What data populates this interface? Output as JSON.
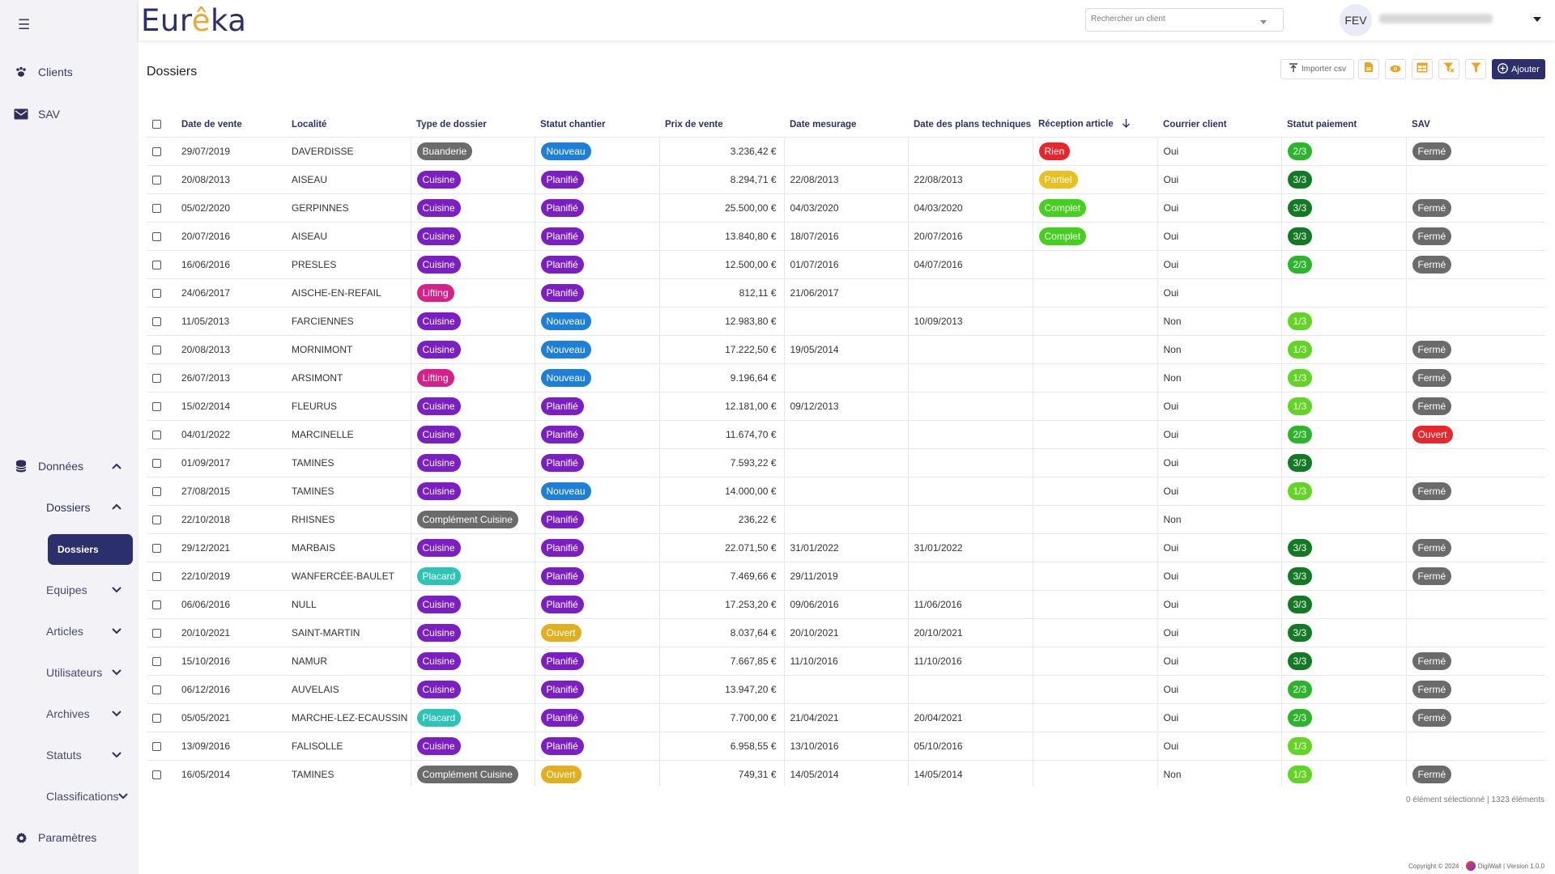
{
  "app": {
    "logo_text_start": "Eur",
    "logo_text_accent": "ê",
    "logo_text_end": "ka"
  },
  "header": {
    "search_placeholder": "Rechercher un client",
    "avatar_initials": "FEV"
  },
  "sidebar": {
    "clients": "Clients",
    "sav": "SAV",
    "donnees": "Données",
    "dossiers_group": "Dossiers",
    "dossiers_active": "Dossiers",
    "equipes": "Equipes",
    "articles": "Articles",
    "utilisateurs": "Utilisateurs",
    "archives": "Archives",
    "statuts": "Statuts",
    "classifications": "Classifications",
    "parametres": "Paramètres"
  },
  "toolbar": {
    "title": "Dossiers",
    "import_label": "Importer csv",
    "add_label": "Ajouter"
  },
  "table": {
    "columns": [
      "Date de vente",
      "Localité",
      "Type de dossier",
      "Statut chantier",
      "Prix de vente",
      "Date mesurage",
      "Date des plans techniques",
      "Réception article",
      "Courrier client",
      "Statut paiement",
      "SAV"
    ],
    "rows": [
      {
        "date": "29/07/2019",
        "loc": "DAVERDISSE",
        "type": "Buanderie",
        "statut": "Nouveau",
        "prix": "3.236,42 €",
        "mes": "",
        "plans": "",
        "recep": "Rien",
        "courrier": "Oui",
        "paie": "2/3",
        "sav": "Fermé"
      },
      {
        "date": "20/08/2013",
        "loc": "AISEAU",
        "type": "Cuisine",
        "statut": "Planifié",
        "prix": "8.294,71 €",
        "mes": "22/08/2013",
        "plans": "22/08/2013",
        "recep": "Partiel",
        "courrier": "Oui",
        "paie": "3/3",
        "sav": ""
      },
      {
        "date": "05/02/2020",
        "loc": "GERPINNES",
        "type": "Cuisine",
        "statut": "Planifié",
        "prix": "25.500,00 €",
        "mes": "04/03/2020",
        "plans": "04/03/2020",
        "recep": "Complet",
        "courrier": "Oui",
        "paie": "3/3",
        "sav": "Fermé"
      },
      {
        "date": "20/07/2016",
        "loc": "AISEAU",
        "type": "Cuisine",
        "statut": "Planifié",
        "prix": "13.840,80 €",
        "mes": "18/07/2016",
        "plans": "20/07/2016",
        "recep": "Complet",
        "courrier": "Oui",
        "paie": "3/3",
        "sav": "Fermé"
      },
      {
        "date": "16/06/2016",
        "loc": "PRESLES",
        "type": "Cuisine",
        "statut": "Planifié",
        "prix": "12.500,00 €",
        "mes": "01/07/2016",
        "plans": "04/07/2016",
        "recep": "",
        "courrier": "Oui",
        "paie": "2/3",
        "sav": "Fermé"
      },
      {
        "date": "24/06/2017",
        "loc": "AISCHE-EN-REFAIL",
        "type": "Lifting",
        "statut": "Planifié",
        "prix": "812,11 €",
        "mes": "21/06/2017",
        "plans": "",
        "recep": "",
        "courrier": "Oui",
        "paie": "",
        "sav": ""
      },
      {
        "date": "11/05/2013",
        "loc": "FARCIENNES",
        "type": "Cuisine",
        "statut": "Nouveau",
        "prix": "12.983,80 €",
        "mes": "",
        "plans": "10/09/2013",
        "recep": "",
        "courrier": "Non",
        "paie": "1/3",
        "sav": ""
      },
      {
        "date": "20/08/2013",
        "loc": "MORNIMONT",
        "type": "Cuisine",
        "statut": "Nouveau",
        "prix": "17.222,50 €",
        "mes": "19/05/2014",
        "plans": "",
        "recep": "",
        "courrier": "Non",
        "paie": "1/3",
        "sav": "Fermé"
      },
      {
        "date": "26/07/2013",
        "loc": "ARSIMONT",
        "type": "Lifting",
        "statut": "Nouveau",
        "prix": "9.196,64 €",
        "mes": "",
        "plans": "",
        "recep": "",
        "courrier": "Non",
        "paie": "1/3",
        "sav": "Fermé"
      },
      {
        "date": "15/02/2014",
        "loc": "FLEURUS",
        "type": "Cuisine",
        "statut": "Planifié",
        "prix": "12.181,00 €",
        "mes": "09/12/2013",
        "plans": "",
        "recep": "",
        "courrier": "Oui",
        "paie": "1/3",
        "sav": "Fermé"
      },
      {
        "date": "04/01/2022",
        "loc": "MARCINELLE",
        "type": "Cuisine",
        "statut": "Planifié",
        "prix": "11.674,70 €",
        "mes": "",
        "plans": "",
        "recep": "",
        "courrier": "Oui",
        "paie": "2/3",
        "sav": "Ouvert"
      },
      {
        "date": "01/09/2017",
        "loc": "TAMINES",
        "type": "Cuisine",
        "statut": "Planifié",
        "prix": "7.593,22 €",
        "mes": "",
        "plans": "",
        "recep": "",
        "courrier": "Oui",
        "paie": "3/3",
        "sav": ""
      },
      {
        "date": "27/08/2015",
        "loc": "TAMINES",
        "type": "Cuisine",
        "statut": "Nouveau",
        "prix": "14.000,00 €",
        "mes": "",
        "plans": "",
        "recep": "",
        "courrier": "Oui",
        "paie": "1/3",
        "sav": "Fermé"
      },
      {
        "date": "22/10/2018",
        "loc": "RHISNES",
        "type": "Complément Cuisine",
        "statut": "Planifié",
        "prix": "236,22 €",
        "mes": "",
        "plans": "",
        "recep": "",
        "courrier": "Non",
        "paie": "",
        "sav": ""
      },
      {
        "date": "29/12/2021",
        "loc": "MARBAIS",
        "type": "Cuisine",
        "statut": "Planifié",
        "prix": "22.071,50 €",
        "mes": "31/01/2022",
        "plans": "31/01/2022",
        "recep": "",
        "courrier": "Oui",
        "paie": "3/3",
        "sav": "Fermé"
      },
      {
        "date": "22/10/2019",
        "loc": "WANFERCÉE-BAULET",
        "type": "Placard",
        "statut": "Planifié",
        "prix": "7.469,66 €",
        "mes": "29/11/2019",
        "plans": "",
        "recep": "",
        "courrier": "Oui",
        "paie": "3/3",
        "sav": "Fermé"
      },
      {
        "date": "06/06/2016",
        "loc": "NULL",
        "type": "Cuisine",
        "statut": "Planifié",
        "prix": "17.253,20 €",
        "mes": "09/06/2016",
        "plans": "11/06/2016",
        "recep": "",
        "courrier": "Oui",
        "paie": "3/3",
        "sav": ""
      },
      {
        "date": "20/10/2021",
        "loc": "SAINT-MARTIN",
        "type": "Cuisine",
        "statut": "Ouvert",
        "prix": "8.037,64 €",
        "mes": "20/10/2021",
        "plans": "20/10/2021",
        "recep": "",
        "courrier": "Oui",
        "paie": "3/3",
        "sav": ""
      },
      {
        "date": "15/10/2016",
        "loc": "NAMUR",
        "type": "Cuisine",
        "statut": "Planifié",
        "prix": "7.667,85 €",
        "mes": "11/10/2016",
        "plans": "11/10/2016",
        "recep": "",
        "courrier": "Oui",
        "paie": "3/3",
        "sav": "Fermé"
      },
      {
        "date": "06/12/2016",
        "loc": "AUVELAIS",
        "type": "Cuisine",
        "statut": "Planifié",
        "prix": "13.947,20 €",
        "mes": "",
        "plans": "",
        "recep": "",
        "courrier": "Oui",
        "paie": "2/3",
        "sav": "Fermé"
      },
      {
        "date": "05/05/2021",
        "loc": "MARCHE-LEZ-ECAUSSIN",
        "type": "Placard",
        "statut": "Planifié",
        "prix": "7.700,00 €",
        "mes": "21/04/2021",
        "plans": "20/04/2021",
        "recep": "",
        "courrier": "Oui",
        "paie": "2/3",
        "sav": "Fermé"
      },
      {
        "date": "13/09/2016",
        "loc": "FALISOLLE",
        "type": "Cuisine",
        "statut": "Planifié",
        "prix": "6.958,55 €",
        "mes": "13/10/2016",
        "plans": "05/10/2016",
        "recep": "",
        "courrier": "Oui",
        "paie": "1/3",
        "sav": ""
      },
      {
        "date": "16/05/2014",
        "loc": "TAMINES",
        "type": "Complément Cuisine",
        "statut": "Ouvert",
        "prix": "749,31 €",
        "mes": "14/05/2014",
        "plans": "14/05/2014",
        "recep": "",
        "courrier": "Non",
        "paie": "1/3",
        "sav": "Fermé"
      }
    ]
  },
  "badge_colors": {
    "Buanderie": "#6b6b6b",
    "Cuisine": "#7b1fc4",
    "Lifting": "#d6208a",
    "Complément Cuisine": "#6b6b6b",
    "Placard": "#2cc4b4",
    "Nouveau": "#1e7fd8",
    "Planifié": "#7b1fc4",
    "Ouvert": "#e0b020",
    "Rien": "#e8262d",
    "Partiel": "#e8c020",
    "Complet": "#44d11e",
    "1/3": "#62d424",
    "2/3": "#2bb52b",
    "3/3": "#127a22",
    "Fermé": "#6b6b6b",
    "Ouvert_sav": "#e8262d"
  },
  "footer": {
    "selection_count": "0 élément sélectionné | 1323 éléments",
    "copyright": "Copyright ©  2024",
    "brand": "DigiWall | Version 1.0.0"
  }
}
